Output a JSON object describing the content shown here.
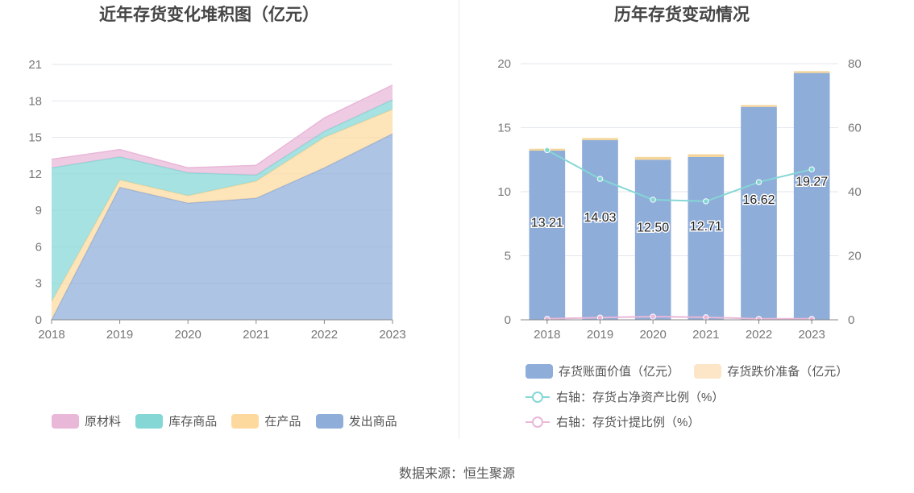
{
  "left": {
    "title": "近年存货变化堆积图（亿元）",
    "chart_data": {
      "type": "area",
      "stacked": true,
      "categories": [
        "2018",
        "2019",
        "2020",
        "2021",
        "2022",
        "2023"
      ],
      "y_ticks": [
        "0",
        "3",
        "6",
        "9",
        "12",
        "15",
        "18",
        "21"
      ],
      "ylim": [
        0,
        21
      ],
      "series": [
        {
          "name": "发出商品",
          "color": "#8fadd9",
          "values": [
            0.0,
            10.9,
            9.6,
            10.0,
            12.5,
            15.3
          ]
        },
        {
          "name": "在产品",
          "color": "#fdd99e",
          "values": [
            1.5,
            0.6,
            0.6,
            1.4,
            2.5,
            2.0
          ]
        },
        {
          "name": "库存商品",
          "color": "#84d7d5",
          "values": [
            11.0,
            1.9,
            1.9,
            0.5,
            0.5,
            0.8
          ]
        },
        {
          "name": "原材料",
          "color": "#e9b7d8",
          "values": [
            0.7,
            0.6,
            0.4,
            0.8,
            1.1,
            1.2
          ]
        }
      ],
      "legend": [
        "原材料",
        "库存商品",
        "在产品",
        "发出商品"
      ],
      "grid": true
    }
  },
  "right": {
    "title": "历年存货变动情况",
    "chart_data": {
      "type": "bar",
      "categories": [
        "2018",
        "2019",
        "2020",
        "2021",
        "2022",
        "2023"
      ],
      "y_left_ticks": [
        "0",
        "5",
        "10",
        "15",
        "20"
      ],
      "y_left_lim": [
        0,
        20
      ],
      "y_right_ticks": [
        "0",
        "20",
        "40",
        "60",
        "80"
      ],
      "y_right_lim": [
        0,
        80
      ],
      "bars": [
        {
          "name": "存货账面价值（亿元）",
          "color": "#8fadd9",
          "values": [
            13.21,
            14.03,
            12.5,
            12.71,
            16.62,
            19.27
          ],
          "labels": [
            "13.21",
            "14.03",
            "12.50",
            "12.71",
            "16.62",
            "19.27"
          ]
        },
        {
          "name": "存货跌价准备（亿元）",
          "color": "#fde5c8",
          "values": [
            0.05,
            0.07,
            0.12,
            0.12,
            0.05,
            0.05
          ]
        }
      ],
      "lines": [
        {
          "name": "右轴：存货占净资产比例（%）",
          "color": "#84d7d5",
          "axis": "right",
          "values": [
            53.0,
            44.0,
            37.5,
            37.0,
            43.0,
            47.0
          ]
        },
        {
          "name": "右轴：存货计提比例（%）",
          "color": "#e9b7d8",
          "axis": "right",
          "values": [
            0.3,
            0.7,
            1.0,
            0.8,
            0.3,
            0.3
          ]
        }
      ],
      "grid": true,
      "legend": [
        "存货账面价值（亿元）",
        "存货跌价准备（亿元）",
        "右轴：存货占净资产比例（%）",
        "右轴：存货计提比例（%）"
      ]
    }
  },
  "source": "数据来源：恒生聚源"
}
